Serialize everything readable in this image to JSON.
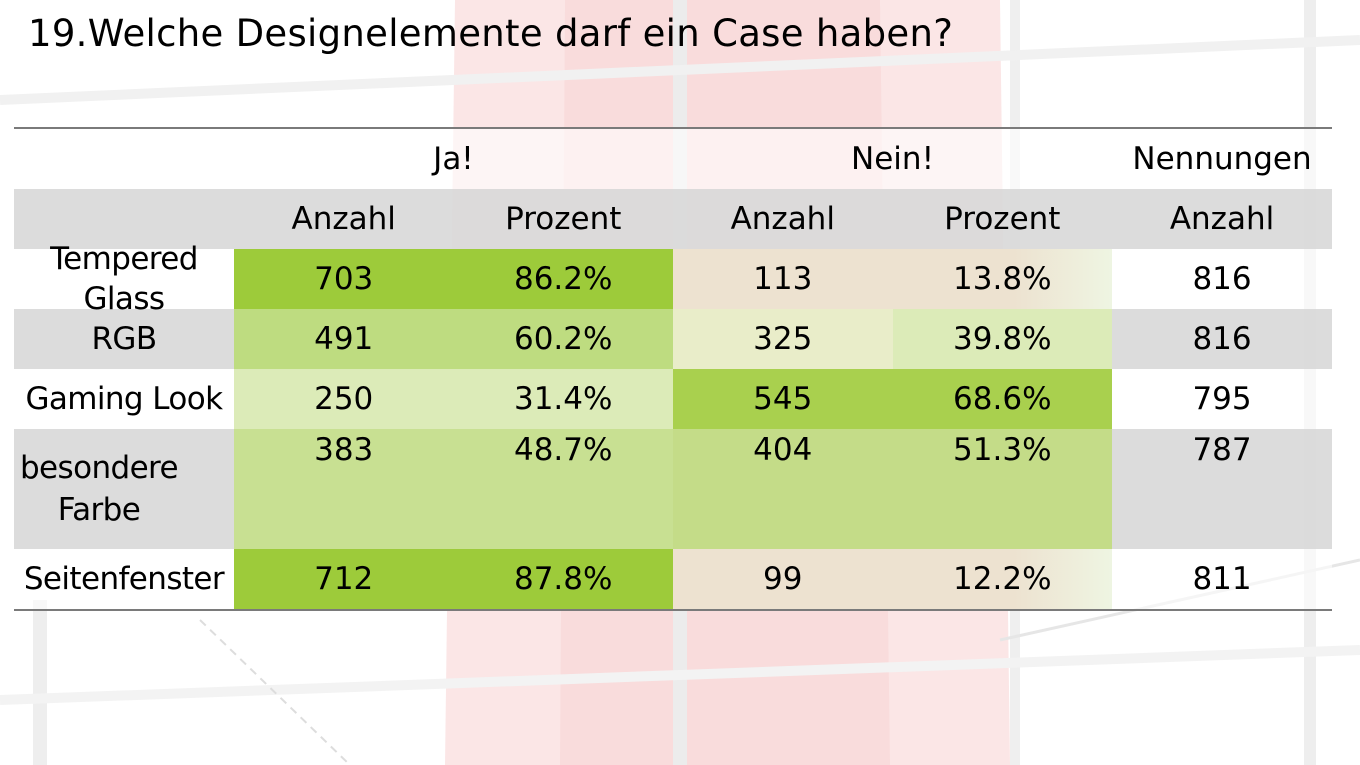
{
  "title": "19.Welche Designelemente darf ein Case haben?",
  "colors": {
    "strong_green": "#9dcb3a",
    "mid_green": "#bedc80",
    "light_green": "#dcebb8",
    "tan": "#ede2d0",
    "row_gray": "#d9d9d9"
  },
  "table": {
    "group_headers": {
      "yes": "Ja!",
      "no": "Nein!",
      "total": "Nennungen"
    },
    "sub_headers": {
      "yes_count": "Anzahl",
      "yes_percent": "Prozent",
      "no_count": "Anzahl",
      "no_percent": "Prozent",
      "total_count": "Anzahl"
    },
    "rows": [
      {
        "label": "Tempered Glass",
        "yes_count": "703",
        "yes_percent": "86.2%",
        "no_count": "113",
        "no_percent": "13.8%",
        "total": "816"
      },
      {
        "label": "RGB",
        "yes_count": "491",
        "yes_percent": "60.2%",
        "no_count": "325",
        "no_percent": "39.8%",
        "total": "816"
      },
      {
        "label": "Gaming Look",
        "yes_count": "250",
        "yes_percent": "31.4%",
        "no_count": "545",
        "no_percent": "68.6%",
        "total": "795"
      },
      {
        "label": "besondere Farbe",
        "yes_count": "383",
        "yes_percent": "48.7%",
        "no_count": "404",
        "no_percent": "51.3%",
        "total": "787"
      },
      {
        "label": "Seitenfenster",
        "yes_count": "712",
        "yes_percent": "87.8%",
        "no_count": "99",
        "no_percent": "12.2%",
        "total": "811"
      }
    ]
  }
}
